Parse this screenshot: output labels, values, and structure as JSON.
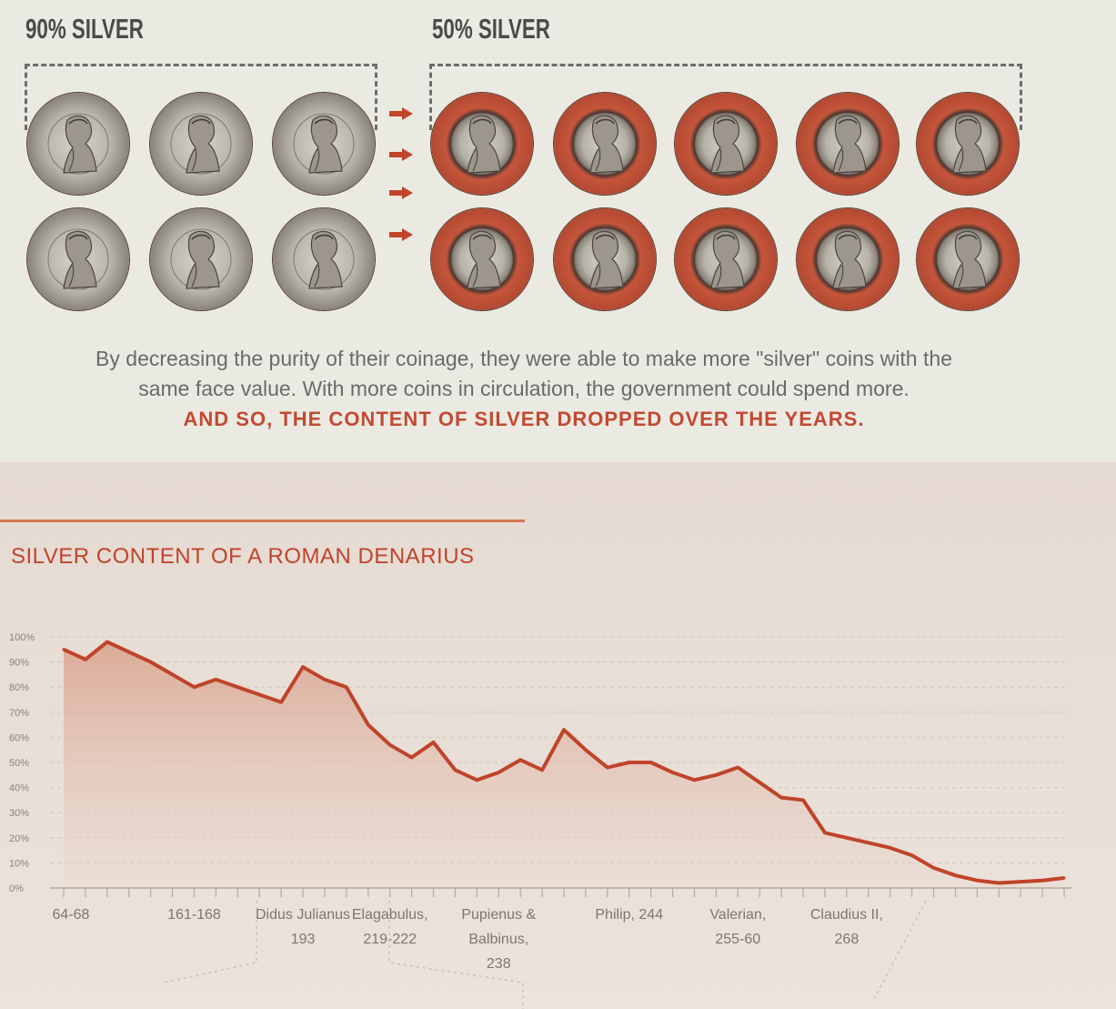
{
  "coin_comparison": {
    "left_label": "90% SILVER",
    "right_label": "50% SILVER",
    "left_coin_count": 6,
    "right_coin_count": 10,
    "arrow_count": 4,
    "colors": {
      "accent": "#c0442a",
      "silver": "#b9b4aa",
      "copper_rim": "#b44a32"
    }
  },
  "caption": {
    "line1": "By decreasing the purity of their coinage, they were able to make more \"silver\" coins with the",
    "line2": "same face value. With more coins in circulation, the government could spend more.",
    "emphasis": "AND SO, THE CONTENT OF SILVER DROPPED OVER THE YEARS."
  },
  "chart_data": {
    "type": "area",
    "title": "SILVER CONTENT OF A ROMAN DENARIUS",
    "xlabel": "",
    "ylabel": "",
    "ylim": [
      0,
      100
    ],
    "grid": true,
    "y_ticks": [
      "100%",
      "90%",
      "80%",
      "70%",
      "60%",
      "50%",
      "40%",
      "30%",
      "20%",
      "10%",
      "0%"
    ],
    "x_tick_labels": [
      {
        "index": 0,
        "lines": [
          "64-68"
        ]
      },
      {
        "index": 6,
        "lines": [
          "161-168"
        ]
      },
      {
        "index": 11,
        "lines": [
          "Didus Julianus",
          "193"
        ]
      },
      {
        "index": 15,
        "lines": [
          "Elagabulus,",
          "219-222"
        ]
      },
      {
        "index": 20,
        "lines": [
          "Pupienus &",
          "Balbinus,",
          "238"
        ]
      },
      {
        "index": 26,
        "lines": [
          "Philip, 244"
        ]
      },
      {
        "index": 31,
        "lines": [
          "Valerian,",
          "255-60"
        ]
      },
      {
        "index": 36,
        "lines": [
          "Claudius II,",
          "268"
        ]
      }
    ],
    "series": [
      {
        "values": [
          95,
          91,
          98,
          94,
          90,
          85,
          80,
          83,
          80,
          77,
          74,
          88,
          83,
          80,
          65,
          57,
          52,
          58,
          47,
          43,
          46,
          51,
          47,
          63,
          55,
          48,
          50,
          50,
          46,
          43,
          45,
          48,
          42,
          36,
          35,
          22,
          20,
          18,
          16,
          13,
          8,
          5,
          3,
          2,
          2.5,
          3,
          4
        ]
      }
    ],
    "colors": {
      "line": "#c0442a",
      "fill_top": "#d89a84",
      "fill_bottom": "#ead9cf",
      "grid": "#cfc6be"
    }
  }
}
